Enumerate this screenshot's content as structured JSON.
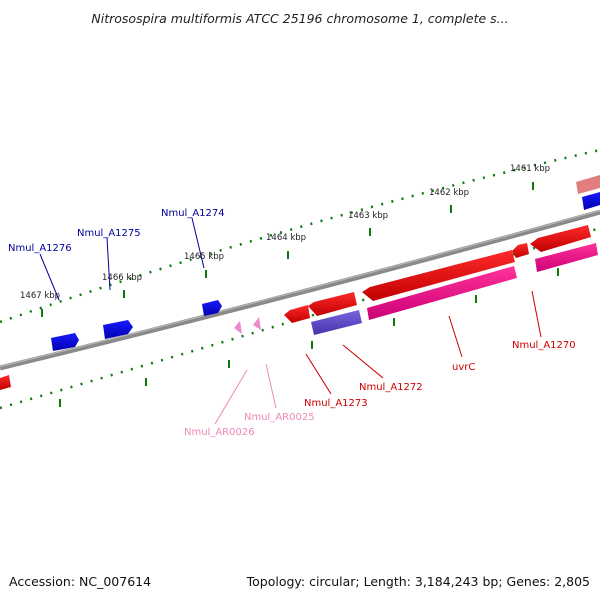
{
  "title": "Nitrosospira multiformis ATCC 25196 chromosome 1, complete s...",
  "footer": {
    "accession": "Accession: NC_007614",
    "topology": "Topology: circular; Length: 3,184,243 bp; Genes: 2,805"
  },
  "ruler": {
    "unit": "kbp",
    "ticks": [
      "1461 kbp",
      "1462 kbp",
      "1463 kbp",
      "1464 kbp",
      "1465 kbp",
      "1466 kbp",
      "1467 kbp"
    ]
  },
  "colors": {
    "backbone": "#808080",
    "ruler": "#117711",
    "forward_gene": "#0000ee",
    "reverse_gene": "#ee0000",
    "repeat_region": "#ee88cc",
    "magenta_feature": "#dd1188",
    "purple_feature": "#6655cc",
    "forward_label": "#000099",
    "reverse_label": "#cc0000",
    "repeat_label": "#ee88bb"
  },
  "labels": {
    "nmul_a1276": "Nmul_A1276",
    "nmul_a1275": "Nmul_A1275",
    "nmul_a1274": "Nmul_A1274",
    "nmul_a1273": "Nmul_A1273",
    "nmul_a1272": "Nmul_A1272",
    "uvrc": "uvrC",
    "nmul_a1270": "Nmul_A1270",
    "nmul_ar0026": "Nmul_AR0026",
    "nmul_ar0025": "Nmul_AR0025"
  }
}
